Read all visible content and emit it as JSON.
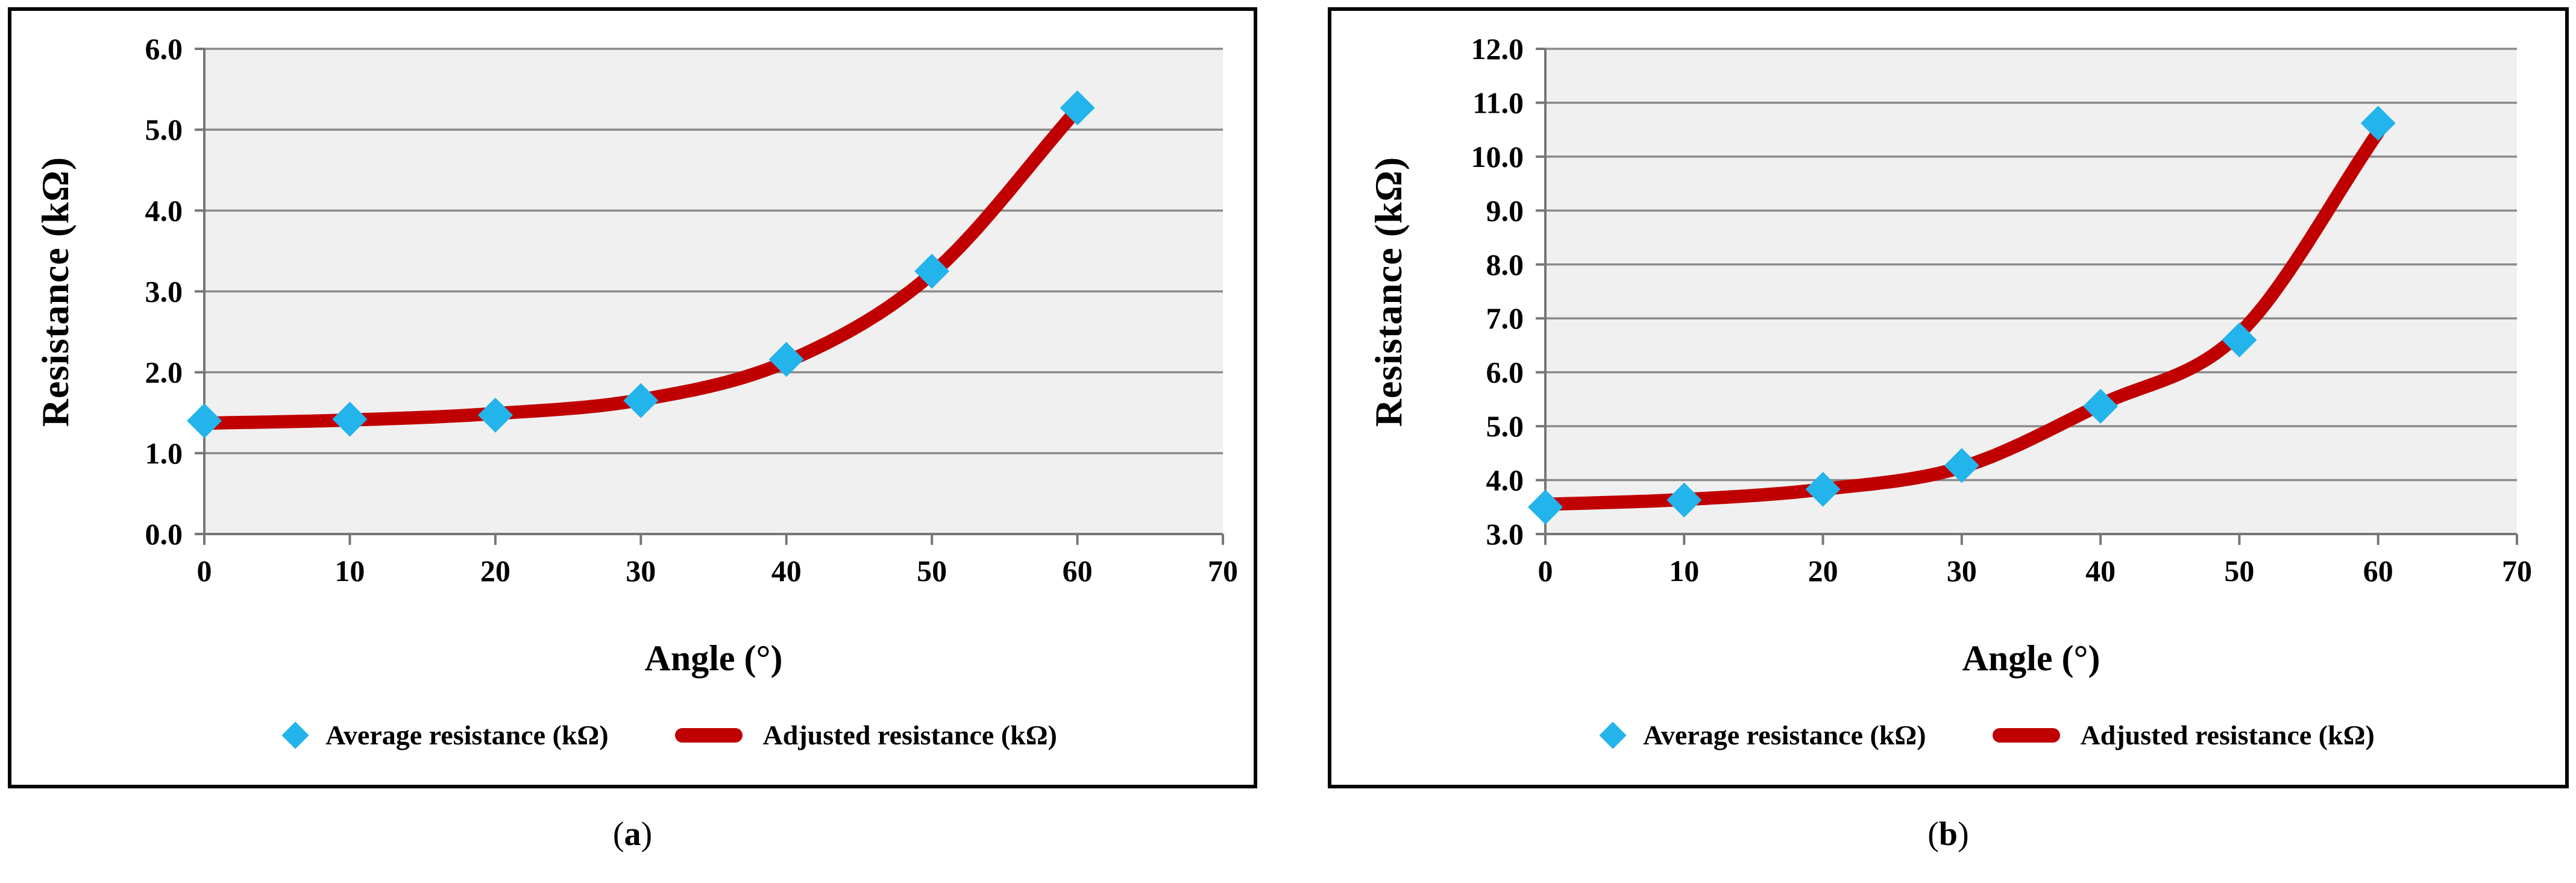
{
  "figure": {
    "colors": {
      "marker_blue": "#23B4EB",
      "line_red": "#C00000",
      "plot_bg": "#F0F0F0",
      "gridline": "#8A8A8A",
      "axis": "#767676",
      "text": "#000000",
      "panel_border": "#000000"
    },
    "panels": [
      {
        "id": "a",
        "caption": {
          "open": "(",
          "letter": "a",
          "close": ")"
        },
        "x_axis": {
          "title": "Angle (°)",
          "tick_labels": [
            "0",
            "10",
            "20",
            "30",
            "40",
            "50",
            "60",
            "70"
          ]
        },
        "y_axis": {
          "title": "Resistance (kΩ)",
          "tick_labels": [
            "0.0",
            "1.0",
            "2.0",
            "3.0",
            "4.0",
            "5.0",
            "6.0"
          ]
        },
        "legend": [
          {
            "label": "Average resistance (kΩ)",
            "marker": "diamond"
          },
          {
            "label": "Adjusted resistance (kΩ)",
            "marker": "line"
          }
        ]
      },
      {
        "id": "b",
        "caption": {
          "open": "(",
          "letter": "b",
          "close": ")"
        },
        "x_axis": {
          "title": "Angle (°)",
          "tick_labels": [
            "0",
            "10",
            "20",
            "30",
            "40",
            "50",
            "60",
            "70"
          ]
        },
        "y_axis": {
          "title": "Resistance (kΩ)",
          "tick_labels": [
            "3.0",
            "4.0",
            "5.0",
            "6.0",
            "7.0",
            "8.0",
            "9.0",
            "10.0",
            "11.0",
            "12.0"
          ]
        },
        "legend": [
          {
            "label": "Average resistance (kΩ)",
            "marker": "diamond"
          },
          {
            "label": "Adjusted resistance (kΩ)",
            "marker": "line"
          }
        ]
      }
    ]
  },
  "chart_data": [
    {
      "type": "scatter",
      "title": "",
      "xlabel": "Angle (°)",
      "ylabel": "Resistance (kΩ)",
      "x": [
        0,
        10,
        20,
        30,
        40,
        50,
        60
      ],
      "xlim": [
        0,
        70
      ],
      "ylim": [
        0.0,
        6.0
      ],
      "xtick_step": 10,
      "ytick_step": 1.0,
      "grid": true,
      "legend_position": "bottom",
      "series": [
        {
          "name": "Average resistance (kΩ)",
          "type": "scatter",
          "marker": "diamond",
          "color": "#23B4EB",
          "values": [
            1.4,
            1.42,
            1.47,
            1.65,
            2.16,
            3.25,
            5.27
          ]
        },
        {
          "name": "Adjusted resistance (kΩ)",
          "type": "line",
          "color": "#C00000",
          "values": [
            1.37,
            1.41,
            1.49,
            1.66,
            2.13,
            3.22,
            5.25
          ]
        }
      ]
    },
    {
      "type": "scatter",
      "title": "",
      "xlabel": "Angle (°)",
      "ylabel": "Resistance (kΩ)",
      "x": [
        0,
        10,
        20,
        30,
        40,
        50,
        60
      ],
      "xlim": [
        0,
        70
      ],
      "ylim": [
        3.0,
        12.0
      ],
      "xtick_step": 10,
      "ytick_step": 1.0,
      "grid": true,
      "legend_position": "bottom",
      "series": [
        {
          "name": "Average resistance (kΩ)",
          "type": "scatter",
          "marker": "diamond",
          "color": "#23B4EB",
          "values": [
            3.5,
            3.63,
            3.83,
            4.27,
            5.37,
            6.6,
            10.62
          ]
        },
        {
          "name": "Adjusted resistance (kΩ)",
          "type": "line",
          "color": "#C00000",
          "values": [
            3.55,
            3.64,
            3.83,
            4.24,
            5.4,
            6.72,
            10.45
          ]
        }
      ]
    }
  ]
}
